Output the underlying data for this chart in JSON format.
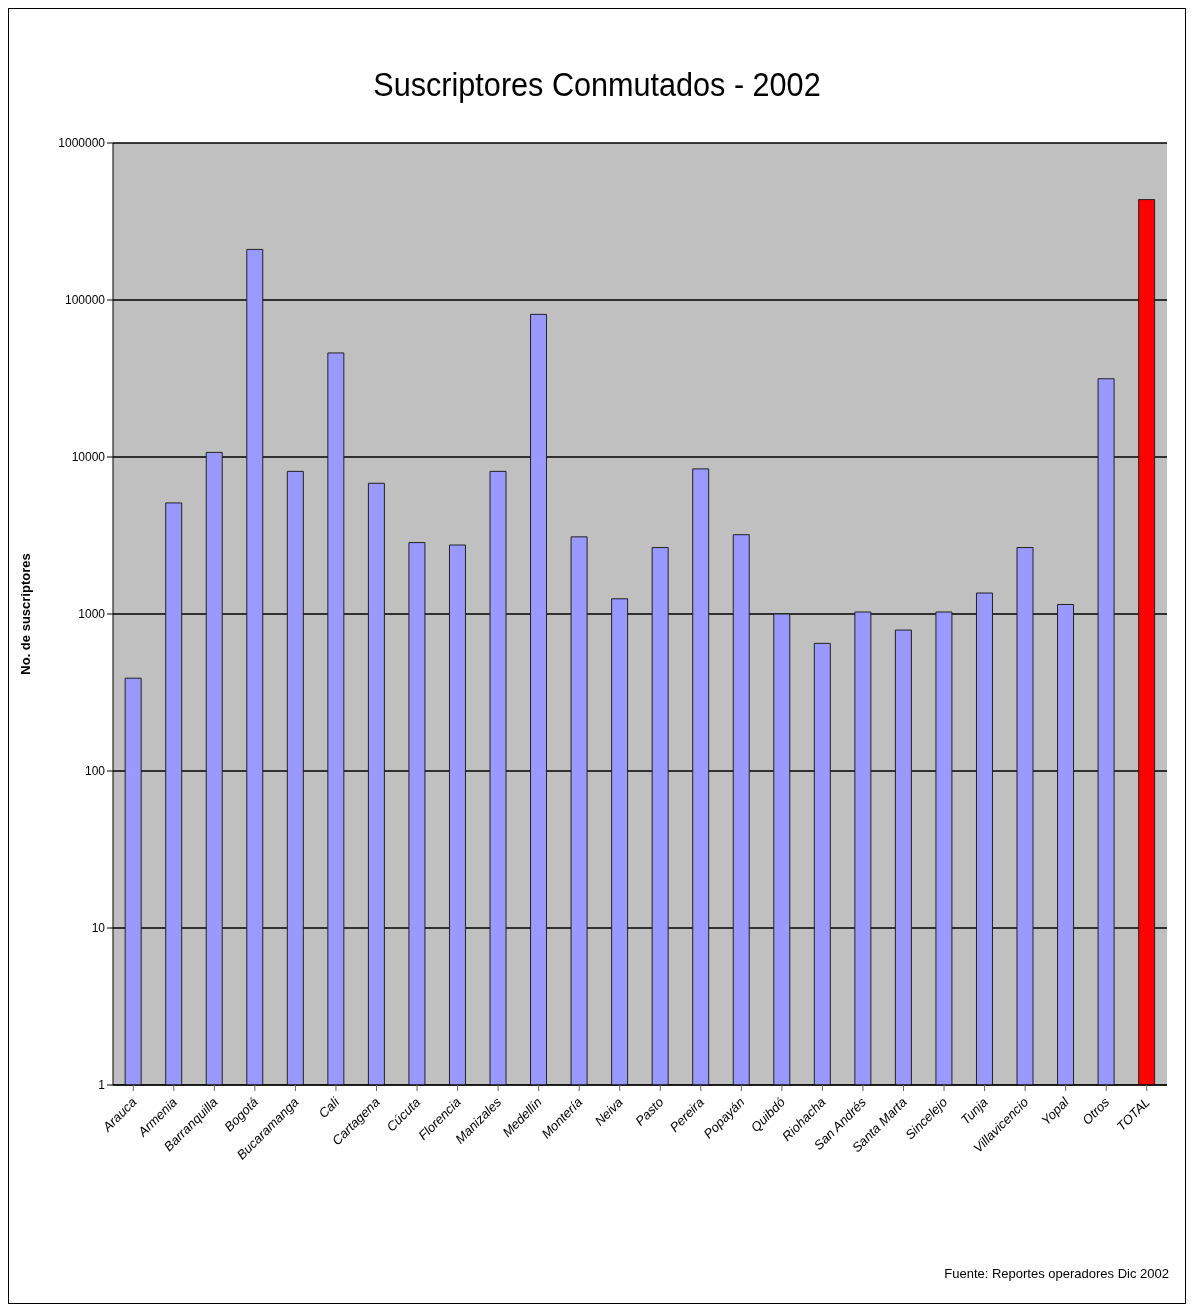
{
  "chart_data": {
    "type": "bar",
    "title": "Suscriptores Conmutados - 2002",
    "ylabel": "No. de suscriptores",
    "categories": [
      "Arauca",
      "Armenia",
      "Barranquilla",
      "Bogotá",
      "Bucaramanga",
      "Cali",
      "Cartagena",
      "Cúcuta",
      "Florencia",
      "Manizales",
      "Medellín",
      "Montería",
      "Neiva",
      "Pasto",
      "Pereira",
      "Popayán",
      "Quibdó",
      "Riohacha",
      "San Andrés",
      "Santa Marta",
      "Sincelejo",
      "Tunja",
      "Villavicencio",
      "Yopal",
      "Otros",
      "TOTAL"
    ],
    "values": [
      390,
      5100,
      10700,
      210000,
      8100,
      46000,
      6800,
      2850,
      2750,
      8100,
      81000,
      3100,
      1250,
      2650,
      8400,
      3200,
      1000,
      650,
      1030,
      790,
      1030,
      1360,
      2650,
      1150,
      31500,
      436000
    ],
    "colors": [
      "#9999ff",
      "#9999ff",
      "#9999ff",
      "#9999ff",
      "#9999ff",
      "#9999ff",
      "#9999ff",
      "#9999ff",
      "#9999ff",
      "#9999ff",
      "#9999ff",
      "#9999ff",
      "#9999ff",
      "#9999ff",
      "#9999ff",
      "#9999ff",
      "#9999ff",
      "#9999ff",
      "#9999ff",
      "#9999ff",
      "#9999ff",
      "#9999ff",
      "#9999ff",
      "#9999ff",
      "#9999ff",
      "#ff0000"
    ],
    "log": true,
    "ylim": [
      1,
      1000000
    ],
    "yticks": [
      1,
      10,
      100,
      1000,
      10000,
      100000,
      1000000
    ],
    "grid": "y",
    "annotations": [
      "Fuente: Reportes operadores Dic 2002"
    ]
  }
}
